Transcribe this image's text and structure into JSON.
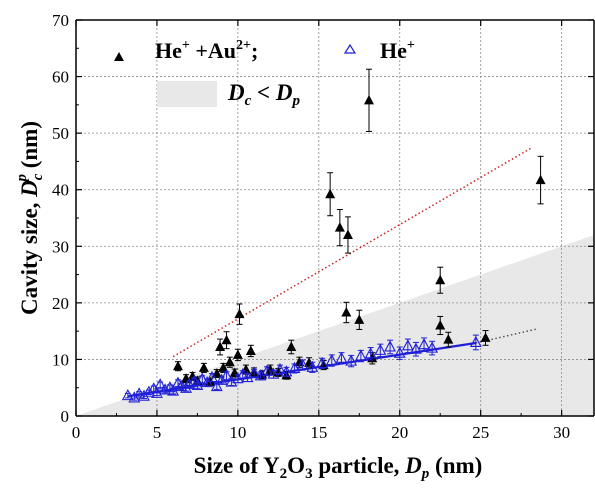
{
  "chart_data": {
    "type": "scatter",
    "xlabel": {
      "pre": "Size of  Y",
      "sub1": "2",
      "mid": "O",
      "sub2": "3",
      "post": " particle, ",
      "var": "D",
      "varsub": "p",
      "unit": " (nm)"
    },
    "ylabel": {
      "pre": "Cavity size, ",
      "var": "D",
      "varsub": "c",
      "varsup": "p",
      "unit": " (nm)"
    },
    "xlim": [
      0,
      32
    ],
    "ylim": [
      0,
      70
    ],
    "xticks": [
      "0",
      "5",
      "10",
      "15",
      "20",
      "25",
      "30"
    ],
    "yticks": [
      "0",
      "10",
      "20",
      "30",
      "40",
      "50",
      "60",
      "70"
    ],
    "grid": true,
    "legend": {
      "placement": "top-left",
      "entry1": {
        "main": "He",
        "sup": "+",
        "mid": " +Au",
        "sup2": "2+",
        "tail": ";"
      },
      "entry2": {
        "main": "He",
        "sup": "+"
      },
      "region": {
        "v1": "D",
        "s1": "c",
        "op": " < ",
        "v2": "D",
        "s2": "p"
      }
    },
    "region": {
      "label": "Dc < Dp",
      "boundary": [
        [
          0,
          0
        ],
        [
          32,
          32
        ]
      ],
      "color": "#e8e8e8"
    },
    "series": [
      {
        "name": "He+ +Au2+",
        "marker": "filled-triangle",
        "color": "#000000",
        "points": [
          {
            "x": 6.3,
            "y": 8.8,
            "err": 0.8
          },
          {
            "x": 6.8,
            "y": 6.6,
            "err": 0.7
          },
          {
            "x": 7.2,
            "y": 7.0,
            "err": 0.7
          },
          {
            "x": 7.5,
            "y": 6.2,
            "err": 0.7
          },
          {
            "x": 7.9,
            "y": 8.5,
            "err": 0.8
          },
          {
            "x": 8.3,
            "y": 6.0,
            "err": 0.6
          },
          {
            "x": 8.7,
            "y": 7.5,
            "err": 0.7
          },
          {
            "x": 8.9,
            "y": 12.2,
            "err": 1.4
          },
          {
            "x": 9.1,
            "y": 8.5,
            "err": 0.8
          },
          {
            "x": 9.3,
            "y": 13.4,
            "err": 1.5
          },
          {
            "x": 9.5,
            "y": 9.5,
            "err": 0.9
          },
          {
            "x": 9.8,
            "y": 7.6,
            "err": 0.7
          },
          {
            "x": 10.0,
            "y": 10.8,
            "err": 1.0
          },
          {
            "x": 10.1,
            "y": 18.0,
            "err": 1.8
          },
          {
            "x": 10.5,
            "y": 8.2,
            "err": 0.8
          },
          {
            "x": 10.8,
            "y": 11.5,
            "err": 1.0
          },
          {
            "x": 11.0,
            "y": 7.8,
            "err": 0.7
          },
          {
            "x": 11.5,
            "y": 7.3,
            "err": 0.7
          },
          {
            "x": 12.0,
            "y": 8.2,
            "err": 0.8
          },
          {
            "x": 12.5,
            "y": 7.7,
            "err": 0.7
          },
          {
            "x": 13.0,
            "y": 7.2,
            "err": 0.7
          },
          {
            "x": 13.3,
            "y": 12.2,
            "err": 1.2
          },
          {
            "x": 13.8,
            "y": 9.5,
            "err": 0.9
          },
          {
            "x": 14.4,
            "y": 9.4,
            "err": 0.9
          },
          {
            "x": 15.3,
            "y": 9.0,
            "err": 0.8
          },
          {
            "x": 15.7,
            "y": 39.2,
            "err": 3.8
          },
          {
            "x": 16.3,
            "y": 33.3,
            "err": 3.2
          },
          {
            "x": 16.7,
            "y": 18.3,
            "err": 1.8
          },
          {
            "x": 16.8,
            "y": 32.0,
            "err": 3.2
          },
          {
            "x": 17.5,
            "y": 17.0,
            "err": 1.7
          },
          {
            "x": 18.1,
            "y": 55.8,
            "err": 5.5
          },
          {
            "x": 18.3,
            "y": 10.2,
            "err": 1.0
          },
          {
            "x": 22.5,
            "y": 24.0,
            "err": 2.3
          },
          {
            "x": 22.5,
            "y": 16.0,
            "err": 1.6
          },
          {
            "x": 23.0,
            "y": 13.5,
            "err": 1.3
          },
          {
            "x": 25.3,
            "y": 13.8,
            "err": 1.3
          },
          {
            "x": 28.7,
            "y": 41.7,
            "err": 4.2
          }
        ]
      },
      {
        "name": "He+",
        "marker": "open-triangle",
        "color": "#1f1fd6",
        "points": [
          {
            "x": 3.2,
            "y": 3.6,
            "err": 0.4
          },
          {
            "x": 3.6,
            "y": 3.2,
            "err": 0.4
          },
          {
            "x": 3.9,
            "y": 3.9,
            "err": 0.4
          },
          {
            "x": 4.2,
            "y": 3.5,
            "err": 0.4
          },
          {
            "x": 4.5,
            "y": 4.2,
            "err": 0.4
          },
          {
            "x": 4.8,
            "y": 4.8,
            "err": 0.5
          },
          {
            "x": 5.0,
            "y": 4.0,
            "err": 0.4
          },
          {
            "x": 5.2,
            "y": 5.5,
            "err": 0.5
          },
          {
            "x": 5.5,
            "y": 4.6,
            "err": 0.5
          },
          {
            "x": 5.8,
            "y": 5.0,
            "err": 0.5
          },
          {
            "x": 6.0,
            "y": 4.4,
            "err": 0.5
          },
          {
            "x": 6.3,
            "y": 5.8,
            "err": 0.6
          },
          {
            "x": 6.5,
            "y": 5.2,
            "err": 0.5
          },
          {
            "x": 6.8,
            "y": 4.9,
            "err": 0.5
          },
          {
            "x": 7.0,
            "y": 5.6,
            "err": 0.6
          },
          {
            "x": 7.3,
            "y": 6.1,
            "err": 0.6
          },
          {
            "x": 7.5,
            "y": 5.4,
            "err": 0.5
          },
          {
            "x": 7.8,
            "y": 6.5,
            "err": 0.6
          },
          {
            "x": 8.1,
            "y": 5.9,
            "err": 0.6
          },
          {
            "x": 8.4,
            "y": 6.8,
            "err": 0.7
          },
          {
            "x": 8.7,
            "y": 5.2,
            "err": 0.5
          },
          {
            "x": 9.0,
            "y": 6.3,
            "err": 0.6
          },
          {
            "x": 9.3,
            "y": 7.1,
            "err": 0.7
          },
          {
            "x": 9.6,
            "y": 6.0,
            "err": 0.6
          },
          {
            "x": 10.0,
            "y": 6.6,
            "err": 0.7
          },
          {
            "x": 10.3,
            "y": 7.3,
            "err": 0.7
          },
          {
            "x": 10.6,
            "y": 6.8,
            "err": 0.7
          },
          {
            "x": 11.0,
            "y": 7.5,
            "err": 0.7
          },
          {
            "x": 11.4,
            "y": 7.1,
            "err": 0.7
          },
          {
            "x": 11.8,
            "y": 7.9,
            "err": 0.8
          },
          {
            "x": 12.2,
            "y": 7.4,
            "err": 0.7
          },
          {
            "x": 12.6,
            "y": 8.2,
            "err": 0.8
          },
          {
            "x": 13.0,
            "y": 7.8,
            "err": 0.8
          },
          {
            "x": 13.5,
            "y": 8.4,
            "err": 0.8
          },
          {
            "x": 14.0,
            "y": 9.0,
            "err": 0.9
          },
          {
            "x": 14.6,
            "y": 8.6,
            "err": 0.9
          },
          {
            "x": 15.2,
            "y": 9.3,
            "err": 0.9
          },
          {
            "x": 15.8,
            "y": 9.8,
            "err": 1.0
          },
          {
            "x": 16.4,
            "y": 10.2,
            "err": 1.0
          },
          {
            "x": 17.0,
            "y": 9.7,
            "err": 1.0
          },
          {
            "x": 17.6,
            "y": 10.6,
            "err": 1.0
          },
          {
            "x": 18.2,
            "y": 11.0,
            "err": 1.1
          },
          {
            "x": 18.8,
            "y": 11.6,
            "err": 1.1
          },
          {
            "x": 19.4,
            "y": 12.2,
            "err": 1.2
          },
          {
            "x": 20.0,
            "y": 11.1,
            "err": 1.1
          },
          {
            "x": 20.5,
            "y": 12.4,
            "err": 1.2
          },
          {
            "x": 21.0,
            "y": 11.8,
            "err": 1.2
          },
          {
            "x": 21.5,
            "y": 12.6,
            "err": 1.2
          },
          {
            "x": 22.0,
            "y": 12.0,
            "err": 1.2
          },
          {
            "x": 24.7,
            "y": 13.0,
            "err": 1.3
          }
        ]
      }
    ],
    "fits": [
      {
        "name": "He+ fit",
        "color": "#1f1fd6",
        "style": "solid",
        "from": [
          3.2,
          3.5
        ],
        "to": [
          24.7,
          12.9
        ]
      },
      {
        "name": "He+ extrapolation",
        "color": "#555555",
        "style": "dotted",
        "from": [
          24.7,
          12.9
        ],
        "to": [
          28.5,
          15.4
        ]
      },
      {
        "name": "He+ +Au2+ trend",
        "color": "#cc2020",
        "style": "dotted",
        "from": [
          6.0,
          10.5
        ],
        "to": [
          28.2,
          47.5
        ]
      }
    ]
  }
}
